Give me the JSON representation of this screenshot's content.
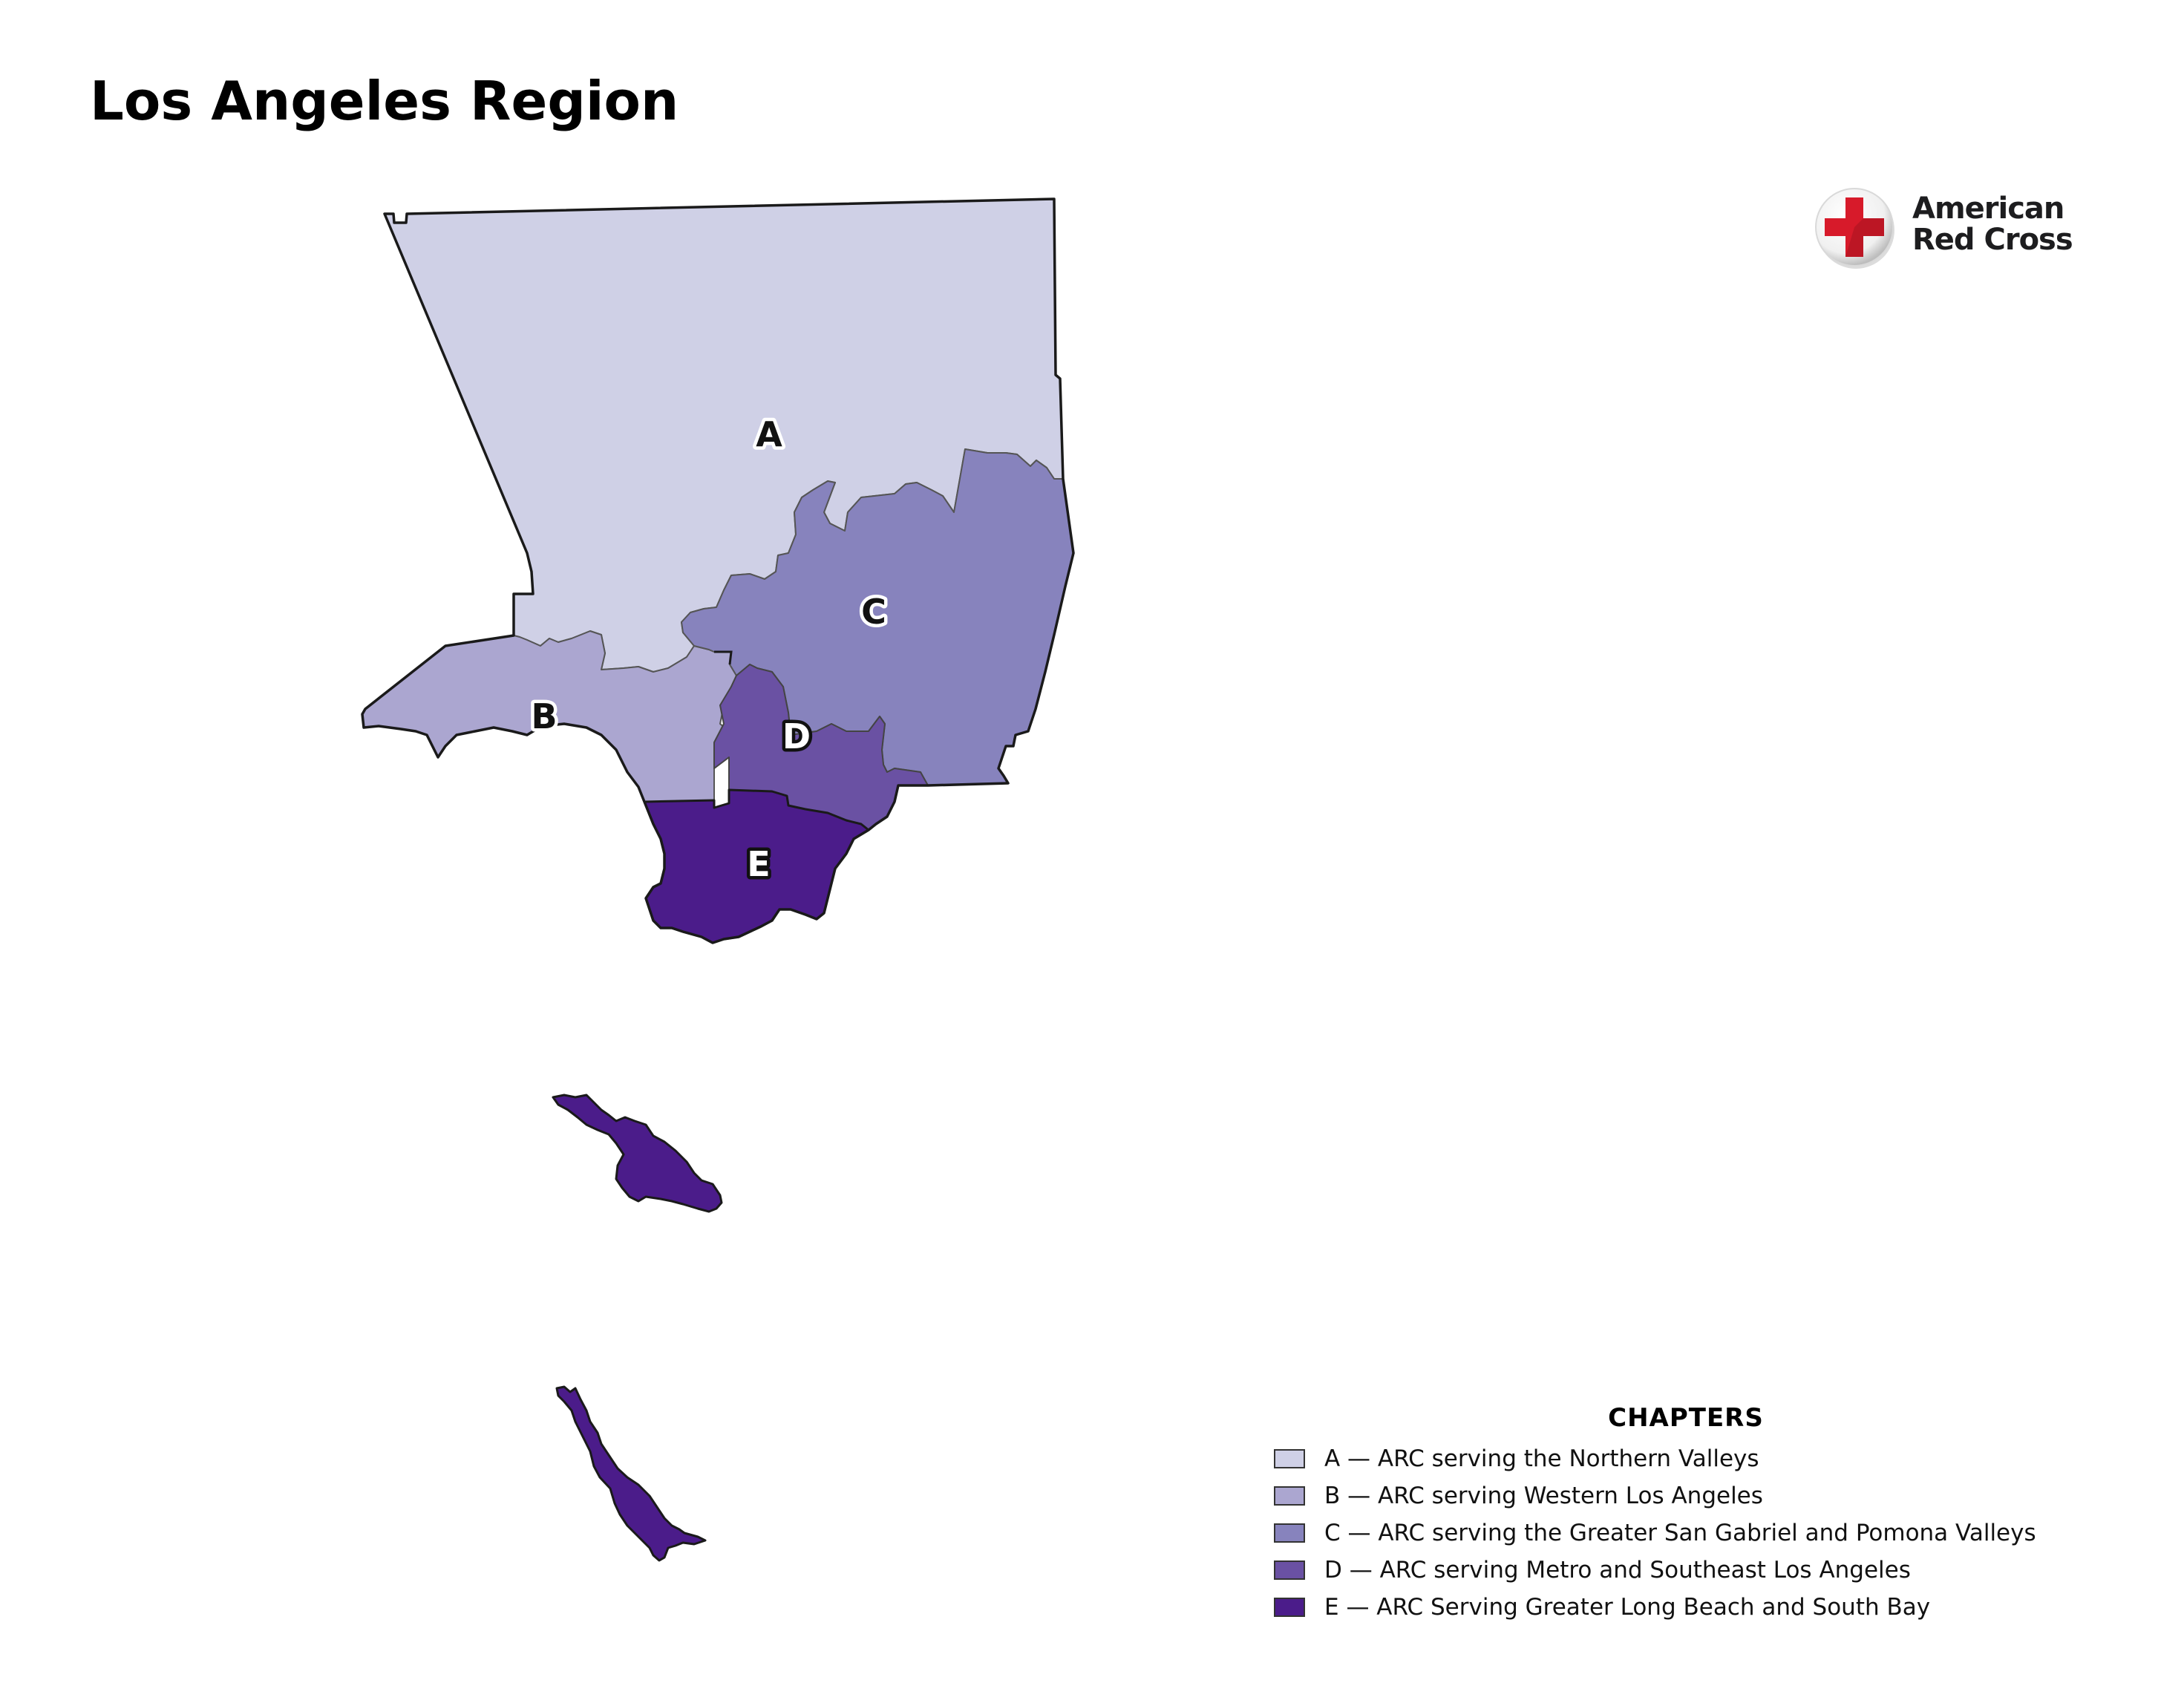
{
  "title": "Los Angeles Region",
  "logo": {
    "name": "American Red Cross",
    "line1": "American",
    "line2": "Red Cross",
    "cross_color": "#d71a2a"
  },
  "map": {
    "regions": [
      {
        "code": "A",
        "color": "#cfd0e6",
        "label_color": "#111111",
        "halo_color": "#ffffff"
      },
      {
        "code": "B",
        "color": "#aba6d0",
        "label_color": "#111111",
        "halo_color": "#ffffff"
      },
      {
        "code": "C",
        "color": "#8783bd",
        "label_color": "#111111",
        "halo_color": "#ffffff"
      },
      {
        "code": "D",
        "color": "#6a51a3",
        "label_color": "#ffffff",
        "halo_color": "#111111"
      },
      {
        "code": "E",
        "color": "#4b1c8a",
        "label_color": "#ffffff",
        "halo_color": "#111111"
      }
    ],
    "border_color": "#1a1a1a"
  },
  "legend": {
    "title": "CHAPTERS",
    "items": [
      {
        "label": "A — ARC serving the Northern Valleys",
        "color": "#cfd0e6"
      },
      {
        "label": "B — ARC serving Western Los Angeles",
        "color": "#aba6d0"
      },
      {
        "label": "C — ARC serving the Greater San Gabriel and Pomona Valleys",
        "color": "#8783bd"
      },
      {
        "label": "D — ARC serving Metro and Southeast Los Angeles",
        "color": "#6a51a3"
      },
      {
        "label": "E — ARC Serving Greater Long Beach and South Bay",
        "color": "#4b1c8a"
      }
    ]
  }
}
